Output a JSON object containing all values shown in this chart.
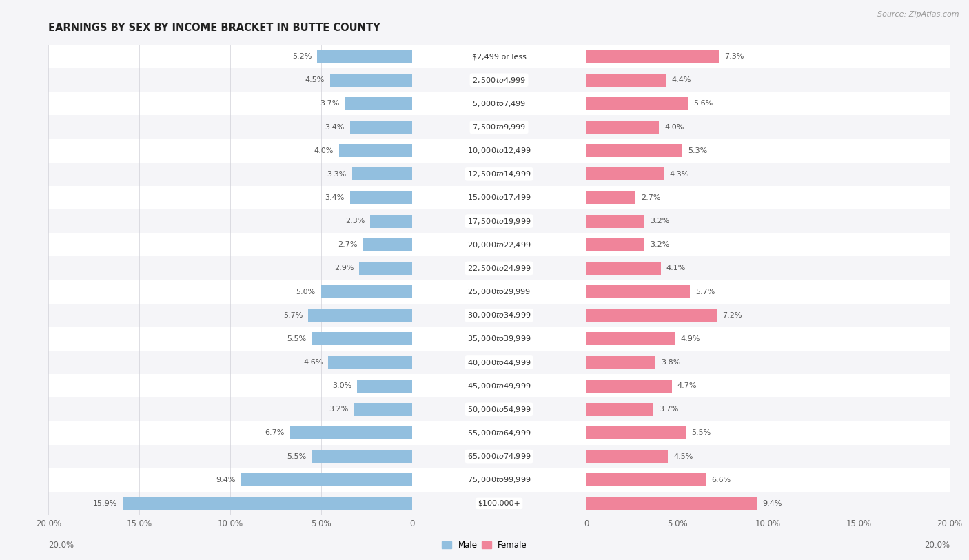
{
  "title": "EARNINGS BY SEX BY INCOME BRACKET IN BUTTE COUNTY",
  "source": "Source: ZipAtlas.com",
  "categories": [
    "$2,499 or less",
    "$2,500 to $4,999",
    "$5,000 to $7,499",
    "$7,500 to $9,999",
    "$10,000 to $12,499",
    "$12,500 to $14,999",
    "$15,000 to $17,499",
    "$17,500 to $19,999",
    "$20,000 to $22,499",
    "$22,500 to $24,999",
    "$25,000 to $29,999",
    "$30,000 to $34,999",
    "$35,000 to $39,999",
    "$40,000 to $44,999",
    "$45,000 to $49,999",
    "$50,000 to $54,999",
    "$55,000 to $64,999",
    "$65,000 to $74,999",
    "$75,000 to $99,999",
    "$100,000+"
  ],
  "male_values": [
    5.2,
    4.5,
    3.7,
    3.4,
    4.0,
    3.3,
    3.4,
    2.3,
    2.7,
    2.9,
    5.0,
    5.7,
    5.5,
    4.6,
    3.0,
    3.2,
    6.7,
    5.5,
    9.4,
    15.9
  ],
  "female_values": [
    7.3,
    4.4,
    5.6,
    4.0,
    5.3,
    4.3,
    2.7,
    3.2,
    3.2,
    4.1,
    5.7,
    7.2,
    4.9,
    3.8,
    4.7,
    3.7,
    5.5,
    4.5,
    6.6,
    9.4
  ],
  "male_color": "#92bfdf",
  "female_color": "#f0849a",
  "row_color_odd": "#f5f5f8",
  "row_color_even": "#ffffff",
  "axis_max": 20.0,
  "bar_height": 0.55,
  "title_fontsize": 10.5,
  "label_fontsize": 8,
  "tick_fontsize": 8.5,
  "source_fontsize": 8,
  "value_fontsize": 8
}
